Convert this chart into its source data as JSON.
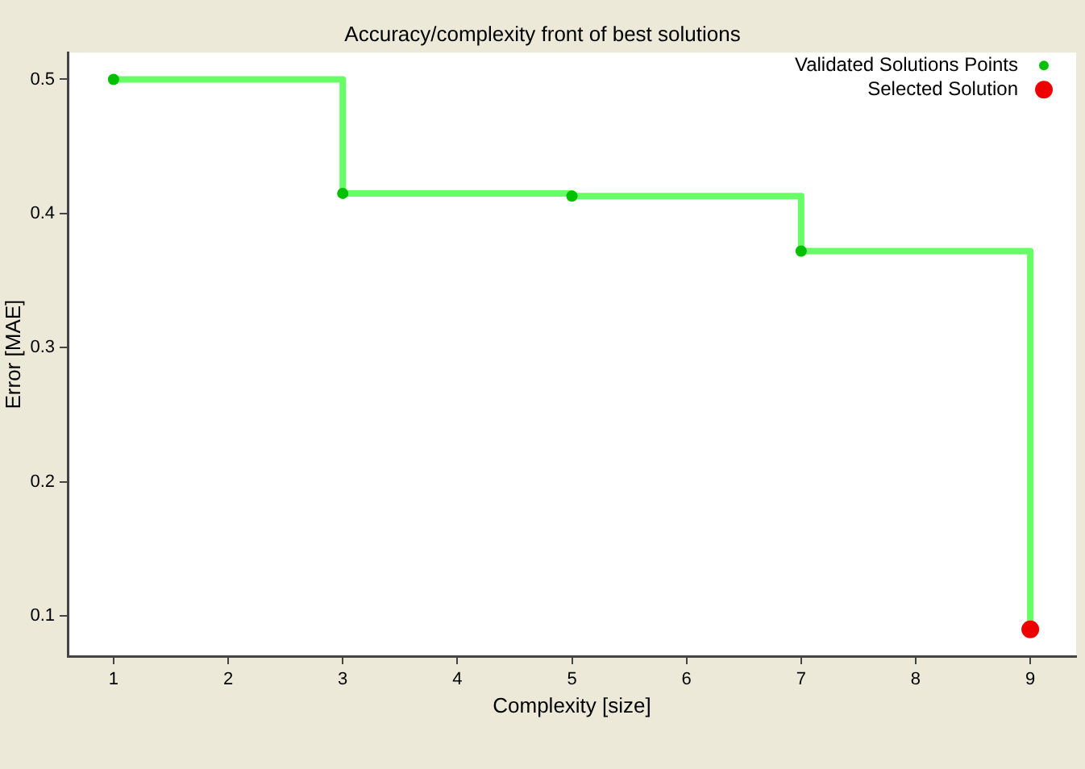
{
  "chart_data": {
    "type": "step",
    "title": "Accuracy/complexity front of best solutions",
    "xlabel": "Complexity [size]",
    "ylabel": "Error [MAE]",
    "xlim": [
      0.6,
      9.4
    ],
    "xticks": [
      1,
      2,
      3,
      4,
      5,
      6,
      7,
      8,
      9
    ],
    "ylim": [
      0.07,
      0.52
    ],
    "yticks": [
      0.1,
      0.2,
      0.3,
      0.4,
      0.5
    ],
    "grid": false,
    "legend": "top right",
    "marker": "circle",
    "series": [
      {
        "color": "#66ff66",
        "x": [
          1,
          3,
          5,
          7,
          9
        ],
        "values": [
          0.5,
          0.415,
          0.413,
          0.372,
          0.09
        ],
        "marker": "none"
      },
      {
        "type": "scatter",
        "name": "Validated Solutions Points",
        "color": "#00c000",
        "x": [
          1,
          3,
          5,
          7
        ],
        "values": [
          0.5,
          0.415,
          0.413,
          0.372
        ]
      },
      {
        "type": "scatter",
        "name": "Selected Solution",
        "color": "#ee0000",
        "x": [
          9
        ],
        "values": [
          0.09
        ]
      }
    ]
  }
}
